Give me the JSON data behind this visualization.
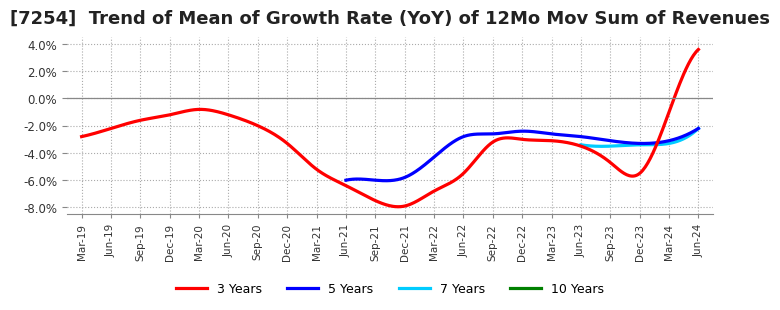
{
  "title": "[7254]  Trend of Mean of Growth Rate (YoY) of 12Mo Mov Sum of Revenues",
  "ylim": [
    -0.085,
    0.045
  ],
  "yticks": [
    -0.08,
    -0.06,
    -0.04,
    -0.02,
    0.0,
    0.02,
    0.04
  ],
  "x_labels": [
    "Mar-19",
    "Jun-19",
    "Sep-19",
    "Dec-19",
    "Mar-20",
    "Jun-20",
    "Sep-20",
    "Dec-20",
    "Mar-21",
    "Jun-21",
    "Sep-21",
    "Dec-21",
    "Mar-22",
    "Jun-22",
    "Sep-22",
    "Dec-22",
    "Mar-23",
    "Jun-23",
    "Sep-23",
    "Dec-23",
    "Mar-24",
    "Jun-24"
  ],
  "series_3y": [
    -0.028,
    -0.022,
    -0.016,
    -0.012,
    -0.008,
    -0.012,
    -0.02,
    -0.033,
    -0.052,
    -0.064,
    -0.075,
    -0.079,
    -0.068,
    -0.055,
    -0.032,
    -0.03,
    -0.031,
    -0.035,
    -0.047,
    -0.055,
    -0.01,
    0.036
  ],
  "series_5y": [
    null,
    null,
    null,
    null,
    null,
    null,
    null,
    null,
    null,
    -0.06,
    -0.06,
    -0.058,
    -0.043,
    -0.028,
    -0.026,
    -0.024,
    -0.026,
    -0.028,
    -0.031,
    -0.033,
    -0.031,
    -0.022
  ],
  "series_7y": [
    null,
    null,
    null,
    null,
    null,
    null,
    null,
    null,
    null,
    null,
    null,
    null,
    null,
    null,
    null,
    null,
    null,
    -0.034,
    -0.035,
    -0.034,
    -0.033,
    -0.022
  ],
  "series_10y": [
    null,
    null,
    null,
    null,
    null,
    null,
    null,
    null,
    null,
    null,
    null,
    null,
    null,
    null,
    null,
    null,
    null,
    null,
    null,
    null,
    null,
    null
  ],
  "color_3y": "#FF0000",
  "color_5y": "#0000FF",
  "color_7y": "#00CCFF",
  "color_10y": "#008000",
  "background_color": "#FFFFFF",
  "grid_color": "#AAAAAA",
  "title_fontsize": 13,
  "legend_labels": [
    "3 Years",
    "5 Years",
    "7 Years",
    "10 Years"
  ]
}
